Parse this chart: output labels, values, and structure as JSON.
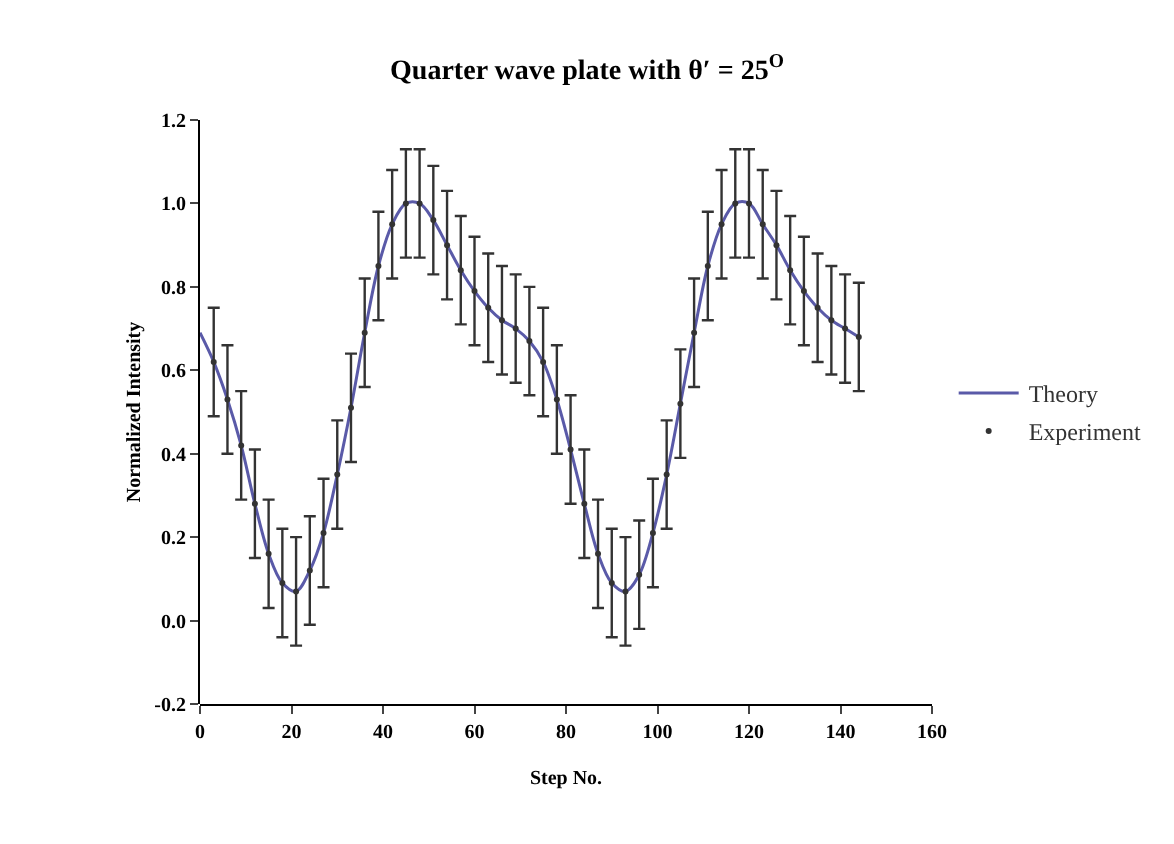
{
  "chart_data": {
    "type": "line",
    "title": "Quarter wave plate with θ′ = 25$^{O}$",
    "xlabel": "Step No.",
    "ylabel": "Normalized Intensity",
    "xlim": [
      0,
      160
    ],
    "xticks": [
      0,
      20,
      40,
      60,
      80,
      100,
      120,
      140,
      160
    ],
    "ylim": [
      -0.2,
      1.2
    ],
    "yticks": [
      -0.2,
      {
        "value": 0,
        "label": "0.0"
      },
      0.2,
      0.4,
      0.6,
      0.8,
      {
        "value": 1,
        "label": "1.0"
      },
      1.2
    ],
    "grid": false,
    "legend": "right",
    "series": [
      {
        "name": "Theory",
        "color": "#5a5aa8",
        "marker": "none",
        "line_style": "solid",
        "x": [
          0,
          3,
          6,
          9,
          12,
          15,
          18,
          21,
          24,
          27,
          30,
          33,
          36,
          39,
          42,
          45,
          48,
          51,
          54,
          57,
          60,
          63,
          66,
          69,
          72,
          75,
          78,
          81,
          84,
          87,
          90,
          93,
          96,
          99,
          102,
          105,
          108,
          111,
          114,
          117,
          120,
          123,
          126,
          129,
          132,
          135,
          138,
          141,
          144
        ],
        "values": [
          0.69,
          0.62,
          0.53,
          0.42,
          0.28,
          0.16,
          0.09,
          0.07,
          0.12,
          0.21,
          0.35,
          0.51,
          0.69,
          0.85,
          0.95,
          1.0,
          1.0,
          0.96,
          0.9,
          0.84,
          0.79,
          0.75,
          0.72,
          0.7,
          0.67,
          0.62,
          0.53,
          0.41,
          0.28,
          0.16,
          0.09,
          0.07,
          0.11,
          0.21,
          0.35,
          0.52,
          0.69,
          0.85,
          0.95,
          1.0,
          1.0,
          0.95,
          0.9,
          0.84,
          0.79,
          0.75,
          0.72,
          0.7,
          0.68
        ]
      },
      {
        "name": "Experiment",
        "type": "scatter",
        "color": "#333333",
        "marker": "circle",
        "x": [
          3,
          6,
          9,
          12,
          15,
          18,
          21,
          24,
          27,
          30,
          33,
          36,
          39,
          42,
          45,
          48,
          51,
          54,
          57,
          60,
          63,
          66,
          69,
          72,
          75,
          78,
          81,
          84,
          87,
          90,
          93,
          96,
          99,
          102,
          105,
          108,
          111,
          114,
          117,
          120,
          123,
          126,
          129,
          132,
          135,
          138,
          141,
          144
        ],
        "values": [
          0.62,
          0.53,
          0.42,
          0.28,
          0.16,
          0.09,
          0.07,
          0.12,
          0.21,
          0.35,
          0.51,
          0.69,
          0.85,
          0.95,
          1.0,
          1.0,
          0.96,
          0.9,
          0.84,
          0.79,
          0.75,
          0.72,
          0.7,
          0.67,
          0.62,
          0.53,
          0.41,
          0.28,
          0.16,
          0.09,
          0.07,
          0.11,
          0.21,
          0.35,
          0.52,
          0.69,
          0.85,
          0.95,
          1.0,
          1.0,
          0.95,
          0.9,
          0.84,
          0.79,
          0.75,
          0.72,
          0.7,
          0.68
        ],
        "errors": [
          0.13,
          0.13,
          0.13,
          0.13,
          0.13,
          0.13,
          0.13,
          0.13,
          0.13,
          0.13,
          0.13,
          0.13,
          0.13,
          0.13,
          0.13,
          0.13,
          0.13,
          0.13,
          0.13,
          0.13,
          0.13,
          0.13,
          0.13,
          0.13,
          0.13,
          0.13,
          0.13,
          0.13,
          0.13,
          0.13,
          0.13,
          0.13,
          0.13,
          0.13,
          0.13,
          0.13,
          0.13,
          0.13,
          0.13,
          0.13,
          0.13,
          0.13,
          0.13,
          0.13,
          0.13,
          0.13,
          0.13,
          0.13
        ]
      }
    ]
  }
}
